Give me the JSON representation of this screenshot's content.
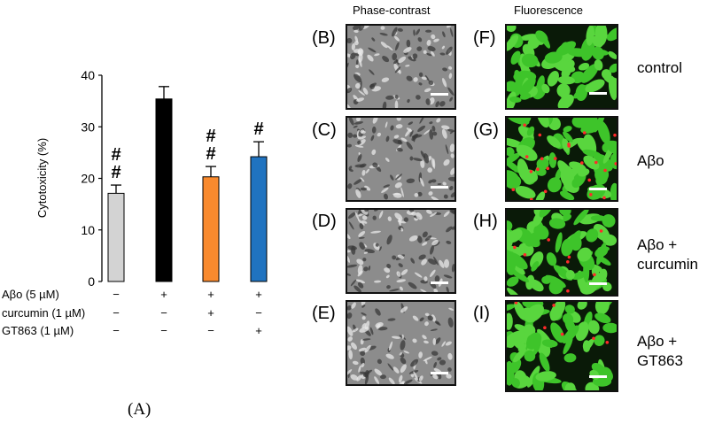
{
  "chart_data": {
    "type": "bar",
    "categories": [
      "control",
      "Aβo",
      "Aβo + curcumin",
      "Aβo + GT863"
    ],
    "values": [
      17.1,
      35.4,
      20.3,
      24.2
    ],
    "errors": [
      1.6,
      2.4,
      2.0,
      2.9
    ],
    "significance": [
      "#\n#",
      "",
      "#\n#",
      "#"
    ],
    "colors": [
      "#d3d3d3",
      "#000000",
      "#f98a2e",
      "#2073c0"
    ],
    "ylabel": "Cytotoxicity (%)",
    "ylim": [
      0,
      40
    ],
    "yticks": [
      "0",
      "10",
      "20",
      "30",
      "40"
    ],
    "treatment_rows": [
      {
        "label": "Aβo (5 µM)",
        "marks": [
          "−",
          "+",
          "+",
          "+"
        ]
      },
      {
        "label": "curcumin (1 µM)",
        "marks": [
          "−",
          "−",
          "+",
          "−"
        ]
      },
      {
        "label": "GT863 (1 µM)",
        "marks": [
          "−",
          "−",
          "−",
          "+"
        ]
      }
    ],
    "figure_label": "(A)"
  },
  "micrographs": {
    "phase_header": "Phase-contrast",
    "fluor_header": "Fluorescence",
    "phase_panels": [
      "(B)",
      "(C)",
      "(D)",
      "(E)"
    ],
    "fluor_panels": [
      "(F)",
      "(G)",
      "(H)",
      "(I)"
    ],
    "conditions": [
      "control",
      "Aβo",
      "Aβo +\ncurcumin",
      "Aβo +\nGT863"
    ]
  }
}
